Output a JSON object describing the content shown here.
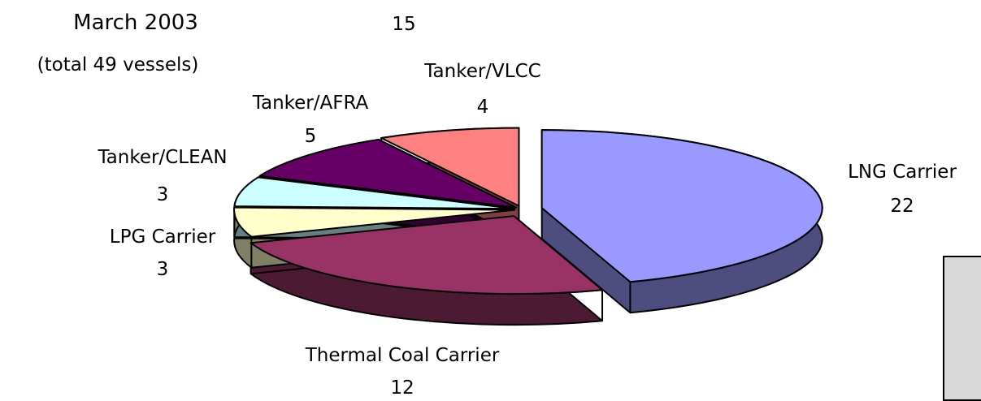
{
  "header": {
    "title": "March 2003",
    "subtitle": "(total 49 vessels)",
    "stray_value": "15"
  },
  "chart_data": {
    "type": "pie",
    "style": "3d-exploded",
    "title": "March 2003",
    "subtitle": "(total 49 vessels)",
    "total": 49,
    "legend": "none",
    "data_labels": "category-and-value",
    "slices": [
      {
        "name": "LNG Carrier",
        "value": 22,
        "color": "#9999ff",
        "side_color": "#4d4d80"
      },
      {
        "name": "Thermal Coal Carrier",
        "value": 12,
        "color": "#993366",
        "side_color": "#4d1a33"
      },
      {
        "name": "LPG Carrier",
        "value": 3,
        "color": "#ffffcc",
        "side_color": "#808066"
      },
      {
        "name": "Tanker/CLEAN",
        "value": 3,
        "color": "#ccffff",
        "side_color": "#668080"
      },
      {
        "name": "Tanker/AFRA",
        "value": 5,
        "color": "#660066",
        "side_color": "#330033"
      },
      {
        "name": "Tanker/VLCC",
        "value": 4,
        "color": "#ff8080",
        "side_color": "#804040"
      }
    ]
  }
}
